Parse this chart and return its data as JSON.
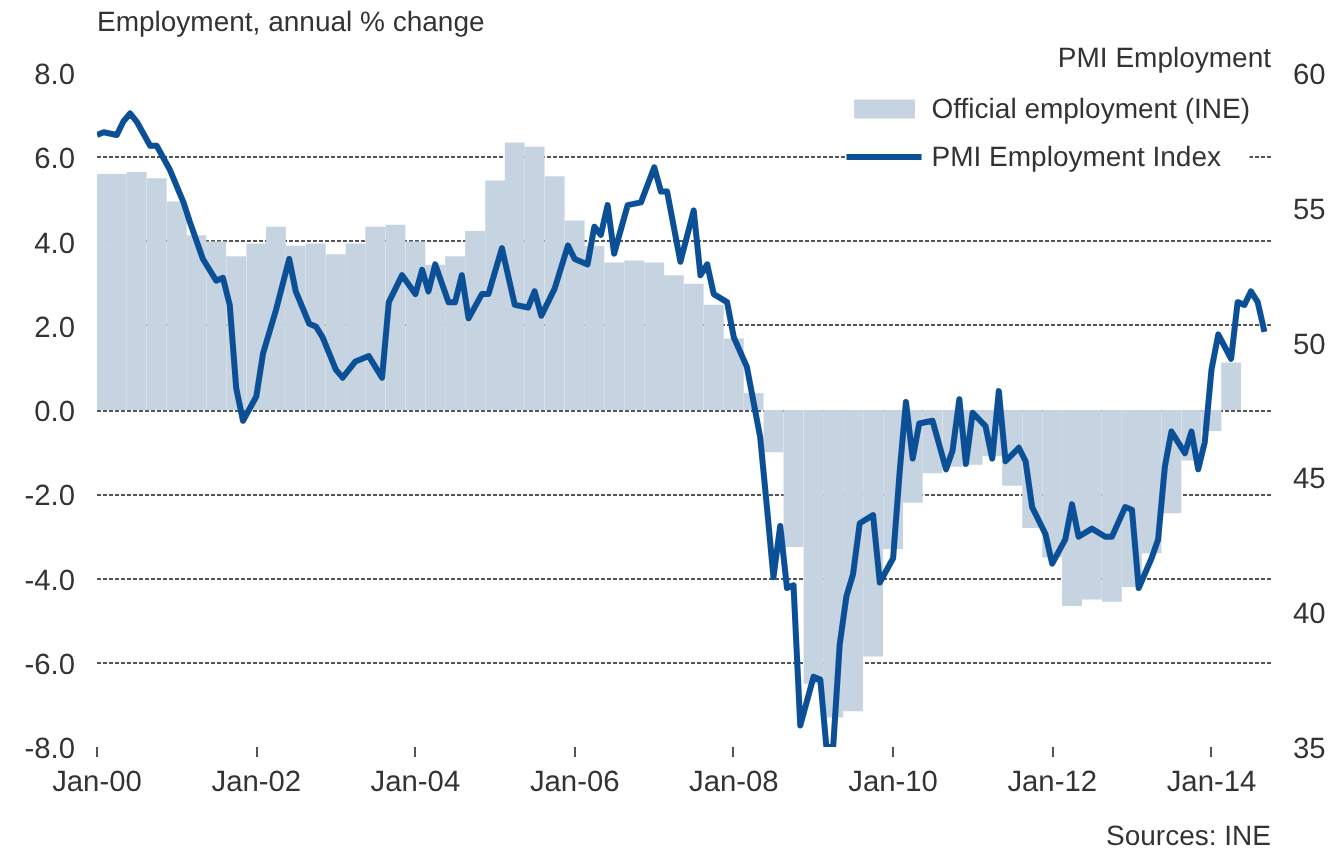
{
  "chart_data": {
    "type": "bar",
    "ylabel": "Employment, annual % change",
    "y2label": "PMI Employment",
    "annotations": [
      "Sources: INE"
    ],
    "xlim": [
      "2000-01",
      "2014-10"
    ],
    "xticks": [
      {
        "value": "2000-01",
        "label": "Jan-00"
      },
      {
        "value": "2002-01",
        "label": "Jan-02"
      },
      {
        "value": "2004-01",
        "label": "Jan-04"
      },
      {
        "value": "2006-01",
        "label": "Jan-06"
      },
      {
        "value": "2008-01",
        "label": "Jan-08"
      },
      {
        "value": "2010-01",
        "label": "Jan-10"
      },
      {
        "value": "2012-01",
        "label": "Jan-12"
      },
      {
        "value": "2014-01",
        "label": "Jan-14"
      }
    ],
    "ylim": [
      -8,
      8
    ],
    "yticks": [
      {
        "value": -8,
        "label": "-8.0"
      },
      {
        "value": -6,
        "label": "-6.0"
      },
      {
        "value": -4,
        "label": "-4.0"
      },
      {
        "value": -2,
        "label": "-2.0"
      },
      {
        "value": 0,
        "label": "0.0"
      },
      {
        "value": 2,
        "label": "2.0"
      },
      {
        "value": 4,
        "label": "4.0"
      },
      {
        "value": 6,
        "label": "6.0"
      },
      {
        "value": 8,
        "label": "8.0"
      }
    ],
    "y2lim": [
      35,
      60
    ],
    "y2ticks": [
      35,
      40,
      45,
      50,
      55,
      60
    ],
    "grid": "y",
    "legend": "top right",
    "series": [
      {
        "name": "Official employment (INE)",
        "color": "#c6d4e1",
        "x": [
          "2000-01",
          "2000-04",
          "2000-07",
          "2000-10",
          "2001-01",
          "2001-04",
          "2001-07",
          "2001-10",
          "2002-01",
          "2002-04",
          "2002-07",
          "2002-10",
          "2003-01",
          "2003-04",
          "2003-07",
          "2003-10",
          "2004-01",
          "2004-04",
          "2004-07",
          "2004-10",
          "2005-01",
          "2005-04",
          "2005-07",
          "2005-10",
          "2006-01",
          "2006-04",
          "2006-07",
          "2006-10",
          "2007-01",
          "2007-04",
          "2007-07",
          "2007-10",
          "2008-01",
          "2008-04",
          "2008-07",
          "2008-10",
          "2009-01",
          "2009-04",
          "2009-07",
          "2009-10",
          "2010-01",
          "2010-04",
          "2010-07",
          "2010-10",
          "2011-01",
          "2011-04",
          "2011-07",
          "2011-10",
          "2012-01",
          "2012-04",
          "2012-07",
          "2012-10",
          "2013-01",
          "2013-04",
          "2013-07",
          "2013-10",
          "2014-01",
          "2014-04"
        ],
        "values": [
          5.6,
          5.6,
          5.65,
          5.5,
          4.95,
          4.15,
          4.0,
          3.65,
          3.95,
          4.35,
          3.9,
          3.95,
          3.7,
          3.95,
          4.35,
          4.4,
          4.0,
          3.45,
          3.65,
          4.25,
          5.45,
          6.35,
          6.25,
          5.55,
          4.5,
          3.9,
          3.5,
          3.55,
          3.5,
          3.2,
          3.0,
          2.5,
          1.7,
          0.4,
          -1.0,
          -3.25,
          -6.5,
          -7.3,
          -7.15,
          -5.85,
          -3.3,
          -2.2,
          -1.5,
          -1.35,
          -1.3,
          -1.1,
          -1.8,
          -2.8,
          -3.5,
          -4.65,
          -4.5,
          -4.55,
          -4.2,
          -3.4,
          -2.45,
          -1.2,
          -0.5,
          1.13
        ]
      },
      {
        "name": "PMI Employment Index",
        "type": "line",
        "axis": "y2",
        "color": "#0b4f96",
        "x": [
          "2000-01",
          "2000-02",
          "2000-04",
          "2000-05",
          "2000-06",
          "2000-07",
          "2000-09",
          "2000-10",
          "2000-12",
          "2001-02",
          "2001-03",
          "2001-05",
          "2001-07",
          "2001-08",
          "2001-09",
          "2001-10",
          "2001-11",
          "2002-01",
          "2002-02",
          "2002-04",
          "2002-06",
          "2002-07",
          "2002-09",
          "2002-10",
          "2002-11",
          "2003-01",
          "2003-02",
          "2003-04",
          "2003-06",
          "2003-08",
          "2003-09",
          "2003-11",
          "2004-01",
          "2004-02",
          "2004-03",
          "2004-04",
          "2004-06",
          "2004-07",
          "2004-08",
          "2004-09",
          "2004-11",
          "2004-12",
          "2005-02",
          "2005-04",
          "2005-06",
          "2005-07",
          "2005-08",
          "2005-10",
          "2005-12",
          "2006-01",
          "2006-03",
          "2006-04",
          "2006-05",
          "2006-06",
          "2006-07",
          "2006-09",
          "2006-11",
          "2007-01",
          "2007-02",
          "2007-03",
          "2007-05",
          "2007-07",
          "2007-08",
          "2007-09",
          "2007-10",
          "2007-12",
          "2008-01",
          "2008-03",
          "2008-05",
          "2008-06",
          "2008-07",
          "2008-08",
          "2008-09",
          "2008-10",
          "2008-11",
          "2009-01",
          "2009-02",
          "2009-03",
          "2009-04",
          "2009-05",
          "2009-06",
          "2009-07",
          "2009-08",
          "2009-10",
          "2009-11",
          "2010-01",
          "2010-02",
          "2010-03",
          "2010-04",
          "2010-05",
          "2010-07",
          "2010-09",
          "2010-10",
          "2010-11",
          "2010-12",
          "2011-01",
          "2011-03",
          "2011-04",
          "2011-05",
          "2011-06",
          "2011-08",
          "2011-09",
          "2011-10",
          "2011-12",
          "2012-01",
          "2012-03",
          "2012-04",
          "2012-05",
          "2012-07",
          "2012-09",
          "2012-10",
          "2012-12",
          "2013-01",
          "2013-02",
          "2013-04",
          "2013-05",
          "2013-06",
          "2013-07",
          "2013-09",
          "2013-10",
          "2013-11",
          "2013-12",
          "2014-01",
          "2014-02",
          "2014-04",
          "2014-05",
          "2014-06",
          "2014-07",
          "2014-08",
          "2014-09"
        ],
        "values": [
          57.7,
          57.8,
          57.7,
          58.2,
          58.5,
          58.2,
          57.3,
          57.3,
          56.4,
          55.2,
          54.5,
          53.1,
          52.3,
          52.4,
          51.4,
          48.3,
          47.1,
          48.0,
          49.6,
          51.2,
          53.1,
          51.9,
          50.7,
          50.6,
          50.2,
          49.0,
          48.7,
          49.3,
          49.5,
          48.7,
          51.5,
          52.5,
          51.8,
          52.7,
          51.9,
          52.9,
          51.5,
          51.5,
          52.5,
          50.9,
          51.8,
          51.8,
          53.5,
          51.4,
          51.3,
          51.9,
          51.0,
          52.0,
          53.6,
          53.1,
          52.9,
          54.3,
          54.0,
          55.1,
          53.3,
          55.1,
          55.2,
          56.5,
          55.6,
          55.6,
          53.0,
          54.9,
          52.5,
          52.9,
          51.8,
          51.5,
          50.2,
          49.1,
          46.5,
          43.9,
          41.3,
          43.2,
          40.9,
          41.0,
          35.8,
          37.6,
          37.5,
          35.0,
          35.0,
          38.8,
          40.6,
          41.4,
          43.3,
          43.6,
          41.1,
          42.0,
          45.3,
          47.8,
          45.7,
          47.0,
          47.1,
          45.3,
          46.0,
          47.9,
          45.5,
          47.4,
          46.9,
          45.7,
          48.2,
          45.6,
          46.1,
          45.6,
          43.9,
          42.9,
          41.8,
          42.7,
          44.0,
          42.8,
          43.1,
          42.8,
          42.8,
          43.9,
          43.8,
          40.9,
          42.0,
          42.7,
          45.4,
          46.7,
          45.9,
          46.7,
          45.3,
          46.3,
          49.0,
          50.3,
          49.4,
          51.5,
          51.4,
          51.9,
          51.5,
          50.4
        ]
      }
    ]
  }
}
